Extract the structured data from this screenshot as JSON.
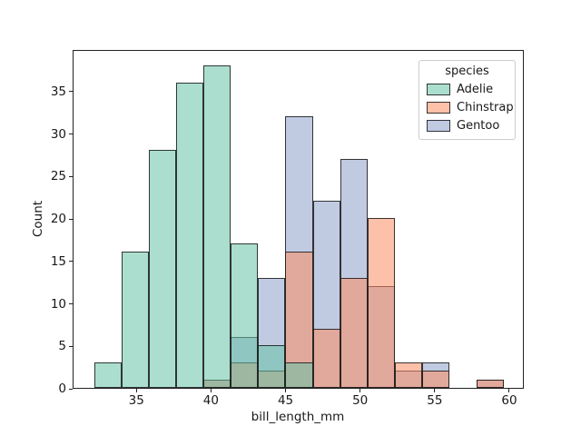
{
  "chart_data": {
    "type": "bar",
    "subtype": "layered-histogram",
    "title": "",
    "xlabel": "bill_length_mm",
    "ylabel": "Count",
    "xlim": [
      30.725,
      60.975
    ],
    "ylim": [
      0,
      39.9
    ],
    "x_ticks": [
      35,
      40,
      45,
      50,
      55,
      60
    ],
    "y_ticks": [
      0,
      5,
      10,
      15,
      20,
      25,
      30,
      35
    ],
    "grid": false,
    "bin_edges": [
      32.1,
      33.93,
      35.77,
      37.6,
      39.43,
      41.27,
      43.1,
      44.93,
      46.77,
      48.6,
      50.43,
      52.27,
      54.1,
      55.93,
      57.77,
      59.6
    ],
    "series": [
      {
        "name": "Gentoo",
        "color": "#8da0cb",
        "counts": [
          0,
          0,
          0,
          0,
          1,
          6,
          13,
          32,
          22,
          27,
          12,
          2,
          3,
          0,
          1
        ]
      },
      {
        "name": "Chinstrap",
        "color": "#fc8d62",
        "counts": [
          0,
          0,
          0,
          0,
          1,
          3,
          2,
          16,
          7,
          13,
          20,
          3,
          2,
          0,
          1
        ]
      },
      {
        "name": "Adelie",
        "color": "#66c2a5",
        "counts": [
          3,
          16,
          28,
          36,
          38,
          17,
          5,
          3,
          0,
          0,
          0,
          0,
          0,
          0,
          0
        ]
      }
    ],
    "legend": {
      "title": "species",
      "position": "upper right",
      "items": [
        {
          "label": "Adelie",
          "color": "#66c2a5"
        },
        {
          "label": "Chinstrap",
          "color": "#fc8d62"
        },
        {
          "label": "Gentoo",
          "color": "#8da0cb"
        }
      ]
    },
    "style": {
      "fill_alpha": 0.55,
      "edge_color": "#222222",
      "spine_color": "#222222",
      "text_color": "#191919",
      "legend_border": "#cccccc"
    }
  }
}
